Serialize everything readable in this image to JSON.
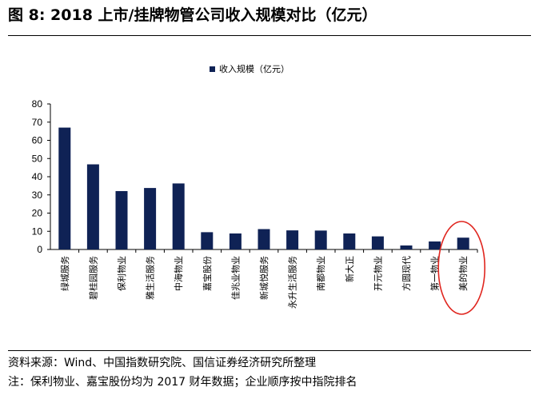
{
  "figure_title": "图 8: 2018 上市/挂牌物管公司收入规模对比（亿元）",
  "colors": {
    "bar": "#0f2255",
    "highlight": "#e0261f",
    "axis": "#000000"
  },
  "chart_data": {
    "type": "bar",
    "categories": [
      "绿城服务",
      "碧桂园服务",
      "保利物业",
      "雅生活服务",
      "中海物业",
      "嘉宝股份",
      "佳兆业物业",
      "新城悦服务",
      "永升生活服务",
      "南都物业",
      "新大正",
      "开元物业",
      "方圆现代",
      "第一物业",
      "美的物业"
    ],
    "series": [
      {
        "name": "收入规模（亿元）",
        "values": [
          67,
          46.8,
          32.1,
          33.8,
          36.3,
          9.5,
          8.8,
          11.2,
          10.5,
          10.4,
          8.8,
          7.2,
          2.2,
          4.4,
          6.5
        ]
      }
    ],
    "yticks": [
      "0",
      "10",
      "20",
      "30",
      "40",
      "50",
      "60",
      "70",
      "80"
    ],
    "ylim": [
      0,
      80
    ],
    "grid": false,
    "legend_position": "top-center",
    "highlighted_category": "美的物业"
  },
  "footer": {
    "source": "资料来源：Wind、中国指数研究院、国信证券经济研究所整理",
    "note": "注：保利物业、嘉宝股份均为 2017 财年数据；企业顺序按中指院排名"
  }
}
